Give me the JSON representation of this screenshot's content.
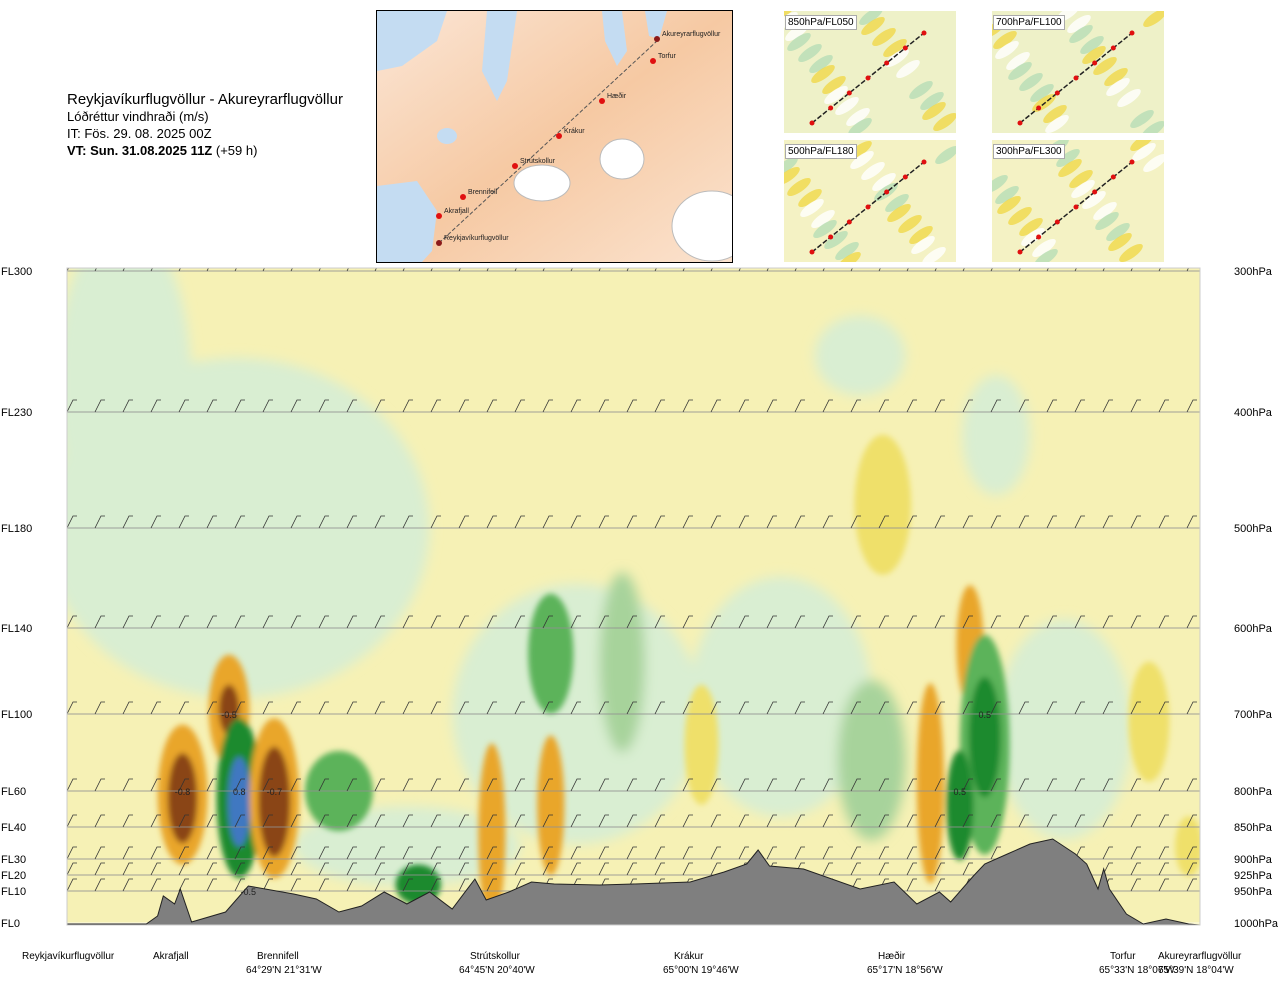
{
  "header": {
    "title": "Reykjavíkurflugvöllur - Akureyrarflugvöllur",
    "subtitle": "Lóðréttur vindhraði (m/s)",
    "it": "IT: Fös. 29. 08. 2025 00Z",
    "vt": "VT: Sun. 31.08.2025 11Z",
    "lead": "(+59 h)"
  },
  "map": {
    "points": [
      "Akureyrarflugvöllur",
      "Torfur",
      "Hæðir",
      "Krákur",
      "Strútskollur",
      "Brennifell",
      "Akrafjall",
      "Reykjavíkurflugvöllur"
    ]
  },
  "panels": [
    {
      "label": "850hPa/FL050"
    },
    {
      "label": "700hPa/FL100"
    },
    {
      "label": "500hPa/FL180"
    },
    {
      "label": "300hPa/FL300"
    }
  ],
  "colors": {
    "light_green": "#d9eed2",
    "mid_green": "#a7d39b",
    "green": "#5cb35a",
    "dark_green": "#1e8a2e",
    "light_yellow": "#f6f1b5",
    "yellow": "#efe06a",
    "orange": "#e9a62b",
    "brown": "#8a4419",
    "blue": "#3f78c1",
    "terrain": "#7f7f7f"
  },
  "chart_data": {
    "type": "heatmap",
    "title": "Lóðréttur vindhraði (m/s)",
    "left_levels": [
      {
        "label": "FL300",
        "hpa": 300
      },
      {
        "label": "FL230",
        "hpa": 400
      },
      {
        "label": "FL180",
        "hpa": 500
      },
      {
        "label": "FL140",
        "hpa": 600
      },
      {
        "label": "FL100",
        "hpa": 700
      },
      {
        "label": "FL60",
        "hpa": 800
      },
      {
        "label": "FL40",
        "hpa": 850
      },
      {
        "label": "FL30",
        "hpa": 900
      },
      {
        "label": "FL20",
        "hpa": 925
      },
      {
        "label": "FL10",
        "hpa": 950
      },
      {
        "label": "FL0",
        "hpa": 1000
      }
    ],
    "right_levels": [
      "300hPa",
      "400hPa",
      "500hPa",
      "600hPa",
      "700hPa",
      "800hPa",
      "850hPa",
      "900hPa",
      "925hPa",
      "950hPa",
      "1000hPa"
    ],
    "locations": [
      {
        "name": "Reykjavíkurflugvöllur",
        "coord": "",
        "frac": 0.0
      },
      {
        "name": "Akrafjall",
        "coord": "",
        "frac": 0.09
      },
      {
        "name": "Brennifell",
        "coord": "64°29'N 21°31'W",
        "frac": 0.188
      },
      {
        "name": "Strútskollur",
        "coord": "64°45'N 20°40'W",
        "frac": 0.378
      },
      {
        "name": "Krákur",
        "coord": "65°00'N 19°46'W",
        "frac": 0.572
      },
      {
        "name": "Hæðir",
        "coord": "65°17'N 18°56'W",
        "frac": 0.75
      },
      {
        "name": "Torfur",
        "coord": "65°33'N 18°07'W",
        "frac": 0.957
      },
      {
        "name": "Akureyrarflugvöllur",
        "coord": "65°39'N 18°04'W",
        "frac": 1.0
      }
    ],
    "annotations": [
      {
        "text": "-0.5",
        "frac": 0.143,
        "hpa": 700
      },
      {
        "text": "-0.8",
        "frac": 0.102,
        "hpa": 800
      },
      {
        "text": "0.8",
        "frac": 0.152,
        "hpa": 800
      },
      {
        "text": "-0.7",
        "frac": 0.183,
        "hpa": 800
      },
      {
        "text": "-0.5",
        "frac": 0.16,
        "hpa": 950
      },
      {
        "text": "0.5",
        "frac": 0.81,
        "hpa": 700
      },
      {
        "text": "0.5",
        "frac": 0.788,
        "hpa": 800
      }
    ],
    "blobs": [
      {
        "frac": 0.143,
        "hpa": 695,
        "rx": 0.018,
        "rh": 55,
        "level": "orange"
      },
      {
        "frac": 0.143,
        "hpa": 695,
        "rx": 0.009,
        "rh": 25,
        "level": "brown"
      },
      {
        "frac": 0.102,
        "hpa": 805,
        "rx": 0.022,
        "rh": 70,
        "level": "orange"
      },
      {
        "frac": 0.102,
        "hpa": 810,
        "rx": 0.013,
        "rh": 45,
        "level": "brown"
      },
      {
        "frac": 0.152,
        "hpa": 810,
        "rx": 0.02,
        "rh": 80,
        "level": "dark_green"
      },
      {
        "frac": 0.152,
        "hpa": 815,
        "rx": 0.01,
        "rh": 45,
        "level": "blue"
      },
      {
        "frac": 0.183,
        "hpa": 810,
        "rx": 0.022,
        "rh": 80,
        "level": "orange"
      },
      {
        "frac": 0.183,
        "hpa": 815,
        "rx": 0.014,
        "rh": 55,
        "level": "brown"
      },
      {
        "frac": 0.24,
        "hpa": 800,
        "rx": 0.03,
        "rh": 40,
        "level": "green"
      },
      {
        "frac": 0.31,
        "hpa": 940,
        "rx": 0.02,
        "rh": 20,
        "level": "dark_green"
      },
      {
        "frac": 0.375,
        "hpa": 860,
        "rx": 0.012,
        "rh": 90,
        "level": "orange"
      },
      {
        "frac": 0.427,
        "hpa": 820,
        "rx": 0.012,
        "rh": 70,
        "level": "orange"
      },
      {
        "frac": 0.427,
        "hpa": 630,
        "rx": 0.02,
        "rh": 60,
        "level": "green"
      },
      {
        "frac": 0.56,
        "hpa": 740,
        "rx": 0.015,
        "rh": 60,
        "level": "yellow"
      },
      {
        "frac": 0.72,
        "hpa": 480,
        "rx": 0.025,
        "rh": 70,
        "level": "yellow"
      },
      {
        "frac": 0.762,
        "hpa": 790,
        "rx": 0.012,
        "rh": 100,
        "level": "orange"
      },
      {
        "frac": 0.797,
        "hpa": 620,
        "rx": 0.012,
        "rh": 60,
        "level": "orange"
      },
      {
        "frac": 0.81,
        "hpa": 740,
        "rx": 0.022,
        "rh": 110,
        "level": "green"
      },
      {
        "frac": 0.81,
        "hpa": 730,
        "rx": 0.014,
        "rh": 60,
        "level": "dark_green"
      },
      {
        "frac": 0.788,
        "hpa": 820,
        "rx": 0.012,
        "rh": 55,
        "level": "dark_green"
      },
      {
        "frac": 0.955,
        "hpa": 710,
        "rx": 0.018,
        "rh": 60,
        "level": "yellow"
      },
      {
        "frac": 0.99,
        "hpa": 880,
        "rx": 0.012,
        "rh": 30,
        "level": "yellow"
      }
    ],
    "terrain_label": "terrain profile"
  }
}
